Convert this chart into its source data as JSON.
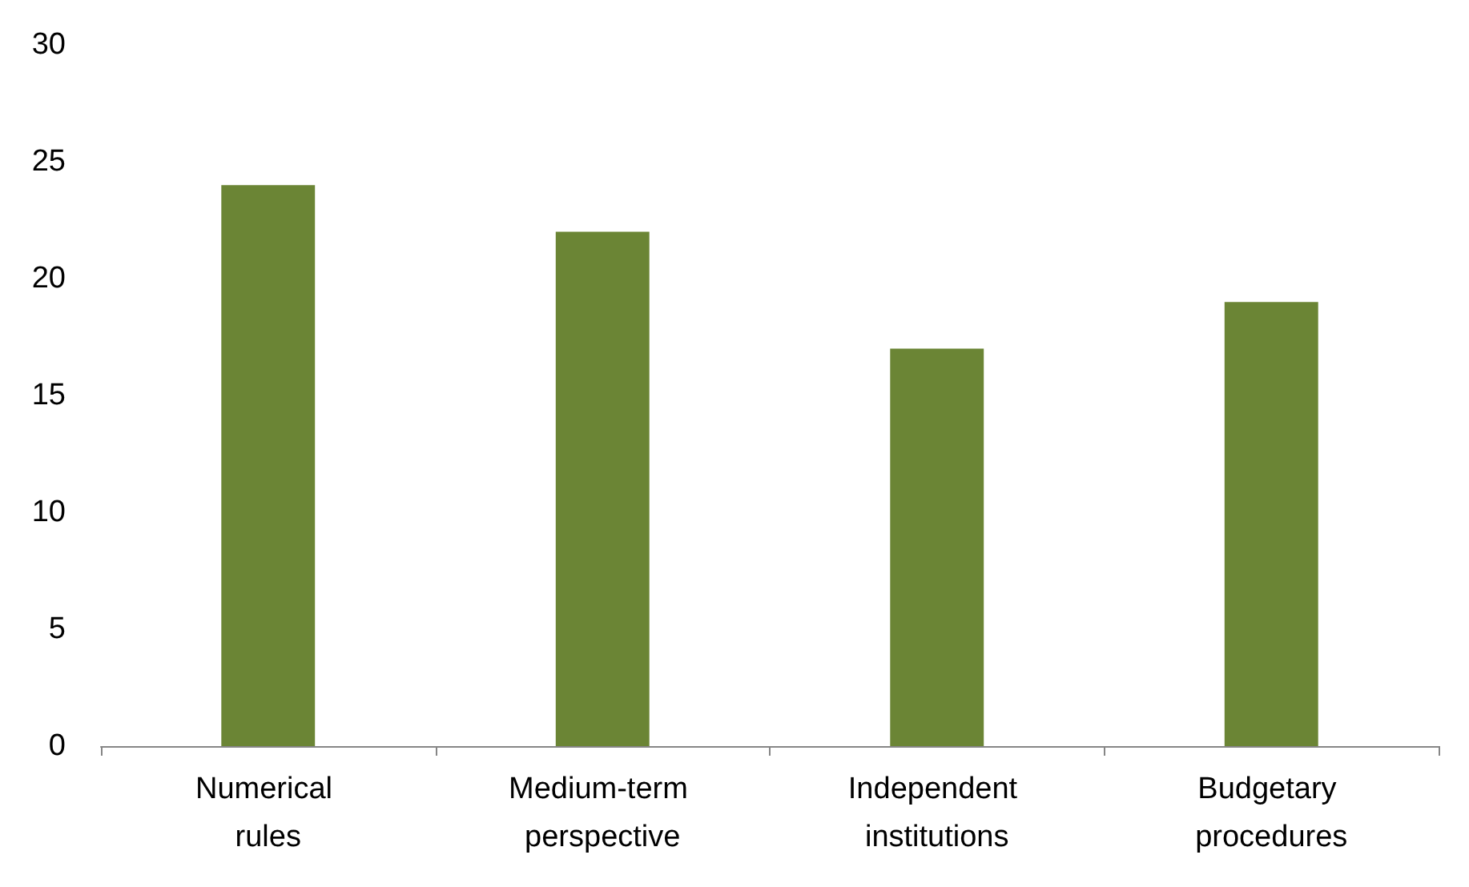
{
  "chart_data": {
    "type": "bar",
    "categories": [
      "Numerical rules",
      "Medium-term perspective",
      "Independent institutions",
      "Budgetary procedures"
    ],
    "values": [
      24,
      22,
      17,
      19
    ],
    "color": "#6b8535",
    "ylim": [
      0,
      30
    ],
    "yticks": [
      0,
      5,
      10,
      15,
      20,
      25,
      30
    ],
    "grid": false
  }
}
